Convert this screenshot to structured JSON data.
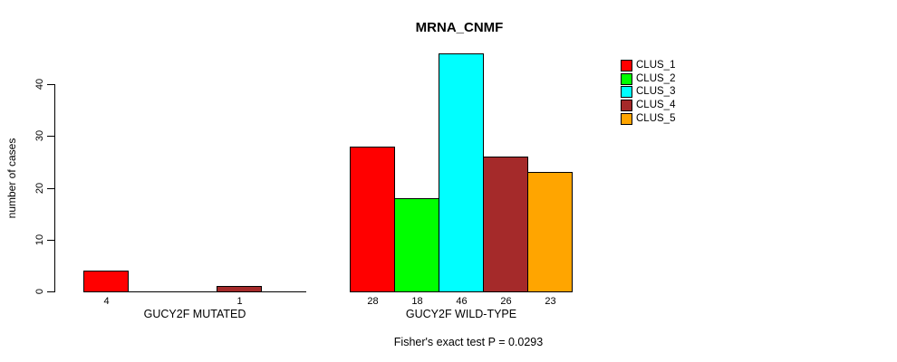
{
  "chart_data": {
    "type": "bar",
    "title": "MRNA_CNMF",
    "ylabel": "number of cases",
    "ylim": [
      0,
      46
    ],
    "yticks": [
      0,
      10,
      20,
      30,
      40
    ],
    "series": [
      "CLUS_1",
      "CLUS_2",
      "CLUS_3",
      "CLUS_4",
      "CLUS_5"
    ],
    "colors": [
      "#FF0000",
      "#00FF00",
      "#00FFFF",
      "#A52A2A",
      "#FFA500"
    ],
    "groups": [
      {
        "label": "GUCY2F MUTATED",
        "values": [
          4,
          0,
          0,
          1,
          0
        ]
      },
      {
        "label": "GUCY2F WILD-TYPE",
        "values": [
          28,
          18,
          46,
          26,
          23
        ]
      }
    ],
    "annotation": "Fisher's exact test P = 0.0293",
    "legend_position": "top-right",
    "grid": false,
    "value_labels": "shown under each nonzero bar",
    "background": "#FFFFFF"
  }
}
